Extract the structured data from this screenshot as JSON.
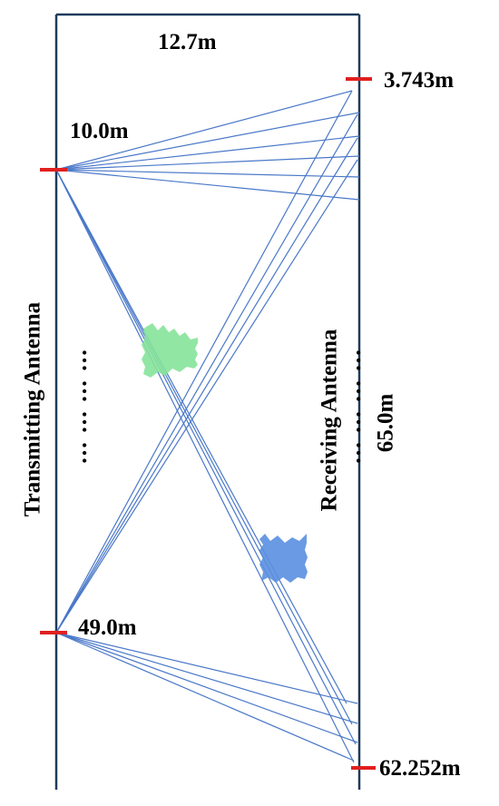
{
  "labels": {
    "width": "12.7m",
    "height": "65.0m",
    "tx_top": "10.0m",
    "tx_bottom": "49.0m",
    "rx_top": "3.743m",
    "rx_bottom": "62.252m",
    "transmitting": "Transmitting Antenna",
    "receiving": "Receiving Antenna",
    "ellipsis": "... ... ... ..."
  },
  "colors": {
    "border": "#1f3b5c",
    "ray": "#4a78c8",
    "marker": "#e02020",
    "green_patch": "#86e39a",
    "blue_patch": "#5a8fe0"
  }
}
